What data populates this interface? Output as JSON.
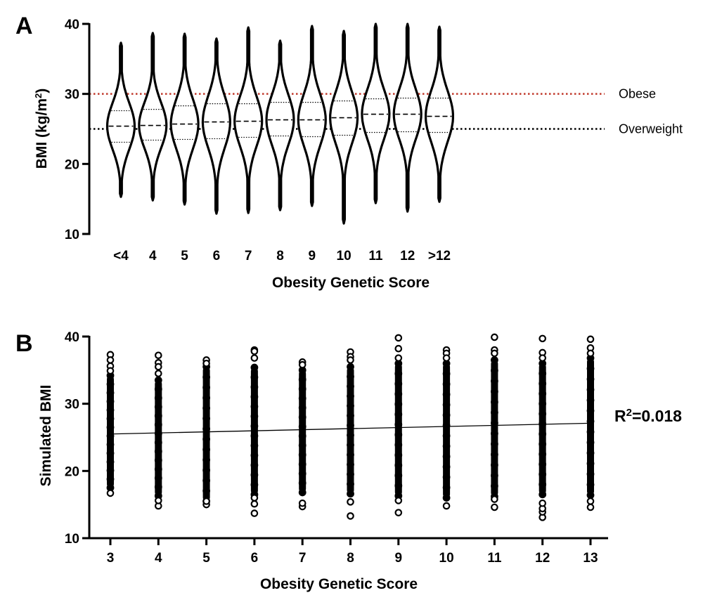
{
  "panel_a": {
    "letter": "A",
    "ref_colors": {
      "obese": "#c0392b",
      "overweight": "#000000"
    },
    "chart_data": {
      "type": "violin",
      "title": "",
      "xlabel": "Obesity Genetic Score",
      "ylabel": "BMI (kg/m²)",
      "ylim": [
        10,
        40
      ],
      "yticks": [
        10,
        20,
        30,
        40
      ],
      "categories": [
        "<4",
        "4",
        "5",
        "6",
        "7",
        "8",
        "9",
        "10",
        "11",
        "12",
        ">12"
      ],
      "min": [
        15.3,
        14.8,
        14.2,
        12.9,
        13.0,
        13.4,
        14.0,
        11.5,
        14.4,
        13.2,
        14.6
      ],
      "q1": [
        23.1,
        23.4,
        23.5,
        23.6,
        23.8,
        24.0,
        23.9,
        24.1,
        24.5,
        24.6,
        24.5
      ],
      "median": [
        25.4,
        25.5,
        25.7,
        26.0,
        26.1,
        26.3,
        26.3,
        26.6,
        27.1,
        27.1,
        26.8
      ],
      "q3": [
        27.6,
        27.8,
        28.3,
        28.6,
        28.6,
        28.8,
        28.8,
        29.0,
        29.3,
        29.4,
        29.4
      ],
      "max": [
        37.3,
        38.7,
        38.6,
        37.9,
        39.5,
        37.6,
        39.7,
        39.0,
        40.0,
        40.0,
        39.6
      ],
      "reference_lines": [
        {
          "y": 30,
          "label": "Obese",
          "color": "#c0392b"
        },
        {
          "y": 25,
          "label": "Overweight",
          "color": "#000000"
        }
      ]
    }
  },
  "panel_b": {
    "letter": "B",
    "chart_data": {
      "type": "scatter",
      "title": "",
      "xlabel": "Obesity Genetic Score",
      "ylabel": "Simulated BMI",
      "xlim": [
        2.5,
        13.5
      ],
      "ylim": [
        10,
        40
      ],
      "x": [
        3,
        4,
        5,
        6,
        7,
        8,
        9,
        10,
        11,
        12,
        13
      ],
      "yticks": [
        10,
        20,
        30,
        40
      ],
      "dense_low": [
        17.5,
        16.3,
        15.5,
        16.5,
        16.8,
        16.6,
        16.3,
        16.0,
        16.2,
        16.5,
        16.4
      ],
      "dense_high": [
        34.2,
        33.5,
        35.5,
        35.4,
        35.0,
        35.5,
        36.0,
        36.0,
        36.5,
        36.0,
        36.8
      ],
      "outliers_high": [
        [
          37.3,
          36.5,
          35.6,
          34.9
        ],
        [
          37.2,
          36.1,
          35.5,
          34.5
        ],
        [
          36.5,
          36.0
        ],
        [
          38.0,
          37.8,
          36.8
        ],
        [
          36.2,
          35.8
        ],
        [
          37.7,
          37.0,
          36.5
        ],
        [
          39.8,
          38.2,
          36.8
        ],
        [
          38.0,
          37.5,
          36.8
        ],
        [
          39.9,
          38.0,
          37.5
        ],
        [
          39.7,
          37.6,
          36.8
        ],
        [
          39.6,
          38.3,
          37.5
        ]
      ],
      "outliers_low": [
        [
          16.7
        ],
        [
          14.8,
          15.6
        ],
        [
          15.0,
          15.5
        ],
        [
          13.7,
          15.1,
          16.0
        ],
        [
          14.7,
          15.2
        ],
        [
          13.3,
          15.4
        ],
        [
          13.8,
          15.6
        ],
        [
          14.8
        ],
        [
          14.6,
          15.8
        ],
        [
          13.1,
          13.9,
          14.4,
          15.2
        ],
        [
          14.6,
          15.5
        ]
      ],
      "regression": {
        "x0": 3,
        "y0": 25.5,
        "x1": 13,
        "y1": 27.1
      },
      "annotation": "R²=0.018"
    }
  }
}
